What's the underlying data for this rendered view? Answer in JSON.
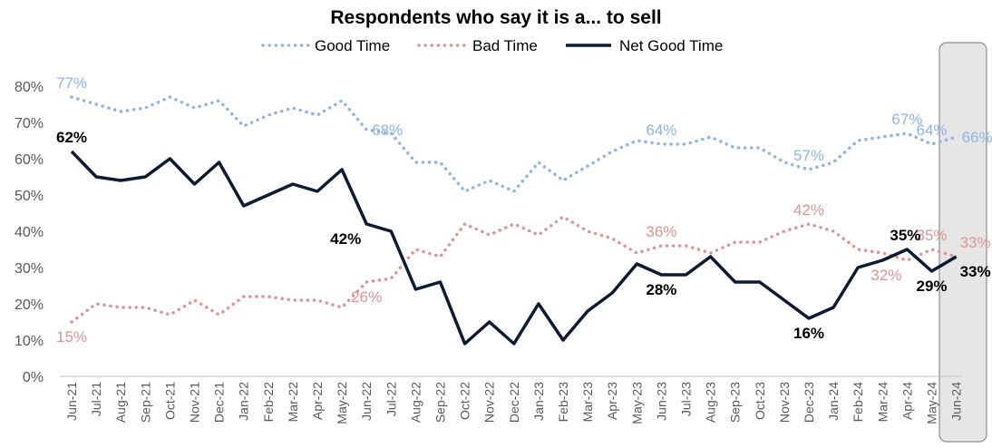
{
  "chart_data": {
    "type": "line",
    "title": "Respondents who say it is a... to sell",
    "x": [
      "Jun-21",
      "Jul-21",
      "Aug-21",
      "Sep-21",
      "Oct-21",
      "Nov-21",
      "Dec-21",
      "Jan-22",
      "Feb-22",
      "Mar-22",
      "Apr-22",
      "May-22",
      "Jun-22",
      "Jul-22",
      "Aug-22",
      "Sep-22",
      "Oct-22",
      "Nov-22",
      "Dec-22",
      "Jan-23",
      "Feb-23",
      "Mar-23",
      "Apr-23",
      "May-23",
      "Jun-23",
      "Jul-23",
      "Aug-23",
      "Sep-23",
      "Oct-23",
      "Nov-23",
      "Dec-23",
      "Jan-24",
      "Feb-24",
      "Mar-24",
      "Apr-24",
      "May-24",
      "Jun-24"
    ],
    "yticks": [
      "0%",
      "10%",
      "20%",
      "30%",
      "40%",
      "50%",
      "60%",
      "70%",
      "80%"
    ],
    "ylim": [
      0,
      80
    ],
    "grid": false,
    "legend_position": "top",
    "highlight": "Jun-24",
    "series": [
      {
        "name": "Good Time",
        "style": "dotted",
        "color": "#8EB4E3",
        "values": [
          77,
          75,
          73,
          74,
          77,
          74,
          76,
          69,
          72,
          74,
          72,
          76,
          68,
          67,
          59,
          59,
          51,
          54,
          51,
          59,
          54,
          58,
          62,
          65,
          64,
          64,
          66,
          63,
          63,
          59,
          57,
          59,
          65,
          66,
          67,
          64,
          66
        ],
        "labels": [
          {
            "i": 0,
            "text": "77%",
            "pos": "above"
          },
          {
            "i": 12,
            "text": "68%",
            "pos": "right"
          },
          {
            "i": 24,
            "text": "64%",
            "pos": "above"
          },
          {
            "i": 30,
            "text": "57%",
            "pos": "above"
          },
          {
            "i": 34,
            "text": "67%",
            "pos": "above"
          },
          {
            "i": 35,
            "text": "64%",
            "pos": "above"
          },
          {
            "i": 36,
            "text": "66%",
            "pos": "right"
          }
        ]
      },
      {
        "name": "Bad Time",
        "style": "dotted",
        "color": "#D99694",
        "values": [
          15,
          20,
          19,
          19,
          17,
          21,
          17,
          22,
          22,
          21,
          21,
          19,
          26,
          27,
          35,
          33,
          42,
          39,
          42,
          39,
          44,
          40,
          38,
          34,
          36,
          36,
          34,
          37,
          37,
          40,
          42,
          40,
          35,
          34,
          32,
          35,
          33
        ],
        "labels": [
          {
            "i": 0,
            "text": "15%",
            "pos": "below"
          },
          {
            "i": 12,
            "text": "26%",
            "pos": "below"
          },
          {
            "i": 24,
            "text": "36%",
            "pos": "above"
          },
          {
            "i": 30,
            "text": "42%",
            "pos": "above"
          },
          {
            "i": 34,
            "text": "32%",
            "pos": "below-left"
          },
          {
            "i": 35,
            "text": "35%",
            "pos": "above"
          },
          {
            "i": 36,
            "text": "33%",
            "pos": "above-right"
          }
        ]
      },
      {
        "name": "Net Good Time",
        "style": "solid",
        "color": "#0C1A33",
        "values": [
          62,
          55,
          54,
          55,
          60,
          53,
          59,
          47,
          50,
          53,
          51,
          57,
          42,
          40,
          24,
          26,
          9,
          15,
          9,
          20,
          10,
          18,
          23,
          31,
          28,
          28,
          33,
          26,
          26,
          21,
          16,
          19,
          30,
          32,
          35,
          29,
          33
        ],
        "labels": [
          {
            "i": 0,
            "text": "62%",
            "pos": "above"
          },
          {
            "i": 12,
            "text": "42%",
            "pos": "below-left"
          },
          {
            "i": 24,
            "text": "28%",
            "pos": "below"
          },
          {
            "i": 30,
            "text": "16%",
            "pos": "below"
          },
          {
            "i": 34,
            "text": "35%",
            "pos": "above-left"
          },
          {
            "i": 35,
            "text": "29%",
            "pos": "below"
          },
          {
            "i": 36,
            "text": "33%",
            "pos": "below-right"
          }
        ]
      }
    ]
  }
}
